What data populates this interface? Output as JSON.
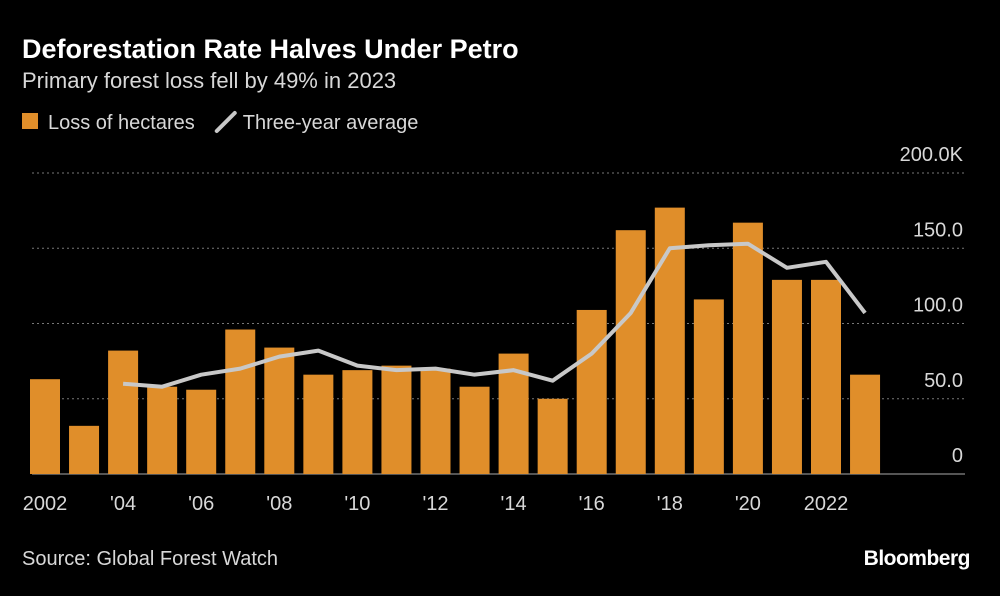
{
  "chart_data": {
    "type": "bar",
    "title": "Deforestation Rate Halves Under Petro",
    "subtitle": "Primary forest loss fell by 49% in 2023",
    "source": "Source: Global Forest Watch",
    "brand": "Bloomberg",
    "categories": [
      "2002",
      null,
      "'04",
      null,
      "'06",
      null,
      "'08",
      null,
      "'10",
      null,
      "'12",
      null,
      "'14",
      null,
      "'16",
      null,
      "'18",
      null,
      "'20",
      null,
      "2022",
      null
    ],
    "series": [
      {
        "name": "Loss of hectares",
        "type": "bar",
        "color": "#e08e2a",
        "values": [
          63000,
          32000,
          82000,
          58000,
          56000,
          96000,
          84000,
          66000,
          69000,
          72000,
          70000,
          58000,
          80000,
          50000,
          109000,
          162000,
          177000,
          116000,
          167000,
          129000,
          129000,
          66000
        ]
      },
      {
        "name": "Three-year average",
        "type": "line",
        "color": "#c8c8c8",
        "values": [
          null,
          null,
          60000,
          58000,
          66000,
          70000,
          78000,
          82000,
          72000,
          69000,
          70000,
          66000,
          69000,
          62000,
          80000,
          107000,
          150000,
          152000,
          153000,
          137000,
          141000,
          107000
        ]
      }
    ],
    "ylim": [
      0,
      200000
    ],
    "yticks": [
      0,
      {
        "value": 50000,
        "label": "50.0"
      },
      {
        "value": 100000,
        "label": "100.0"
      },
      {
        "value": 150000,
        "label": "150.0"
      },
      {
        "value": 200000,
        "label": "200.0K"
      }
    ],
    "grid": true,
    "legend": "top-left"
  }
}
